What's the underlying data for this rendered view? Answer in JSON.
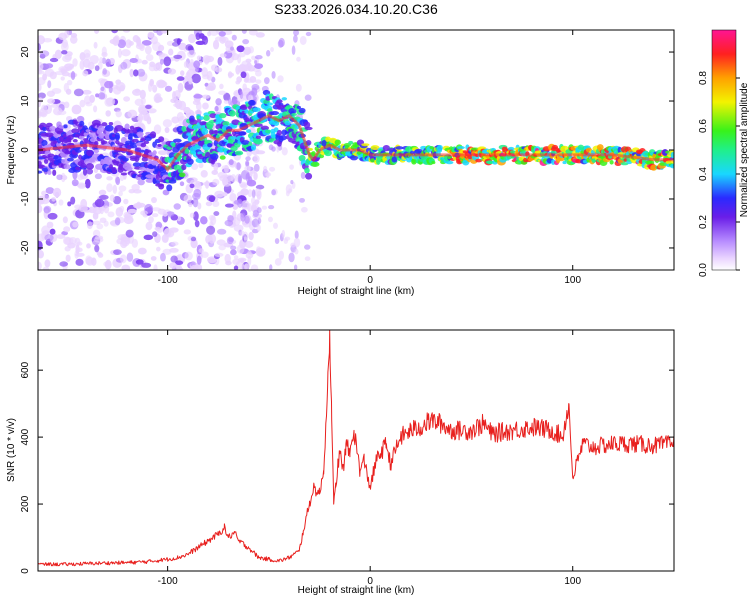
{
  "title": "S233.2026.034.10.20.C36",
  "colors": {
    "snr_line": "#e8201e",
    "ridge": "#ff2a2a",
    "scatter": "#7a3cf0",
    "colormap": [
      "#ffffff",
      "#e9d3ff",
      "#b78cff",
      "#6a1ee8",
      "#2a2aff",
      "#19d7ff",
      "#20f08a",
      "#38f21a",
      "#f3f300",
      "#ffa100",
      "#ff2020",
      "#ff1493"
    ]
  },
  "chart_data": [
    {
      "type": "heatmap",
      "title": "S233.2026.034.10.20.C36",
      "xlabel": "Height of straight line (km)",
      "ylabel": "Frequency (Hz)",
      "xlim": [
        -164,
        150
      ],
      "ylim": [
        -24.5,
        24.5
      ],
      "xticks": [
        -100,
        0,
        100
      ],
      "yticks": [
        -20,
        -10,
        0,
        10,
        20
      ],
      "colorbar": {
        "label": "Normalized spectral amplitude",
        "range": [
          0,
          1
        ],
        "ticks": [
          "0.0",
          "0.2",
          "0.4",
          "0.6",
          "0.8"
        ]
      },
      "ridge": {
        "x": [
          -164,
          -140,
          -120,
          -105,
          -100,
          -95,
          -90,
          -85,
          -80,
          -75,
          -70,
          -65,
          -60,
          -55,
          -50,
          -45,
          -40,
          -35,
          -30,
          -28,
          -25,
          -20,
          -15,
          -10,
          -5,
          0,
          10,
          20,
          40,
          60,
          80,
          100,
          120,
          140,
          150
        ],
        "y": [
          0,
          1,
          0,
          -2,
          -4,
          -1,
          1,
          2,
          3,
          2,
          4,
          4,
          5,
          6,
          7,
          6,
          7,
          5,
          -1,
          -2,
          0,
          1,
          0,
          0,
          0,
          -1,
          -1,
          -1,
          -1,
          -1,
          -1,
          -1,
          -1,
          -2,
          -2
        ]
      }
    },
    {
      "type": "line",
      "xlabel": "Height of straight line (km)",
      "ylabel": "SNR (10 * v/v)",
      "xlim": [
        -164,
        150
      ],
      "ylim": [
        0,
        720
      ],
      "xticks": [
        -100,
        0,
        100
      ],
      "yticks": [
        0,
        200,
        400,
        600
      ],
      "series": [
        {
          "name": "SNR",
          "x": [
            -164,
            -150,
            -140,
            -130,
            -120,
            -110,
            -100,
            -95,
            -90,
            -85,
            -80,
            -75,
            -72,
            -70,
            -67,
            -65,
            -60,
            -55,
            -50,
            -45,
            -40,
            -35,
            -33,
            -30,
            -28,
            -25,
            -23,
            -22,
            -21,
            -20,
            -19,
            -18,
            -17,
            -16,
            -15,
            -13,
            -12,
            -10,
            -8,
            -5,
            -3,
            0,
            3,
            5,
            8,
            10,
            15,
            20,
            25,
            30,
            35,
            40,
            50,
            56,
            60,
            70,
            80,
            90,
            95,
            98,
            100,
            105,
            110,
            120,
            130,
            140,
            150
          ],
          "y": [
            20,
            20,
            22,
            24,
            25,
            28,
            35,
            40,
            50,
            70,
            90,
            110,
            130,
            100,
            115,
            90,
            70,
            40,
            35,
            30,
            40,
            60,
            120,
            200,
            250,
            230,
            300,
            420,
            550,
            720,
            450,
            200,
            250,
            320,
            350,
            300,
            380,
            350,
            420,
            300,
            330,
            250,
            330,
            350,
            380,
            320,
            400,
            420,
            430,
            450,
            440,
            420,
            420,
            440,
            410,
            420,
            430,
            420,
            400,
            500,
            280,
            380,
            370,
            380,
            380,
            375,
            380
          ]
        }
      ]
    }
  ]
}
